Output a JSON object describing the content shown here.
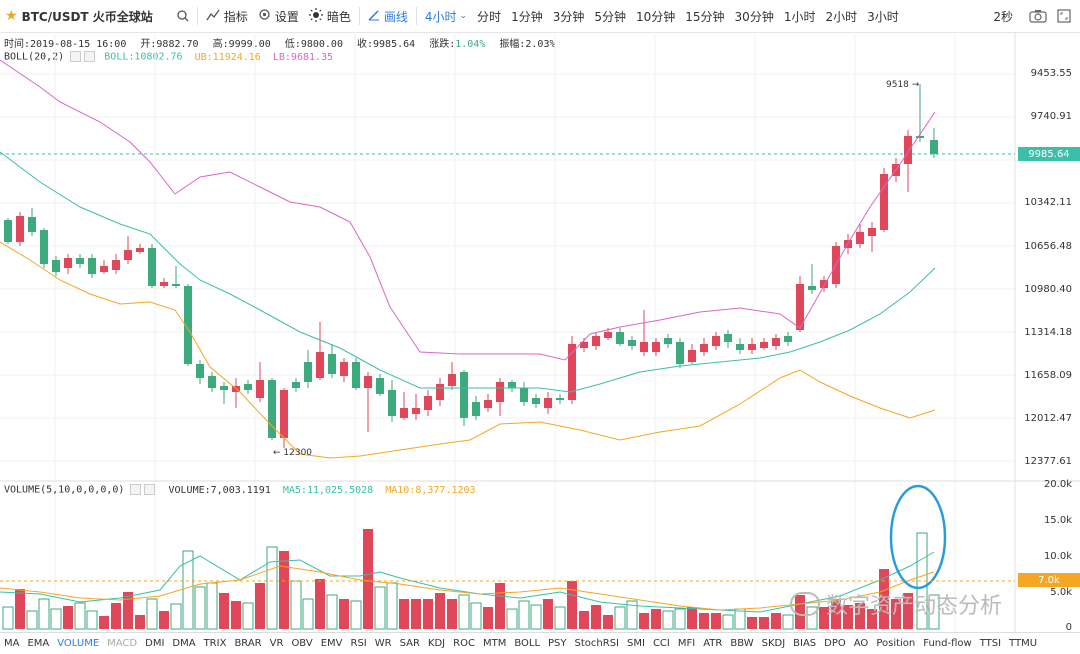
{
  "toolbar": {
    "symbol": "BTC/USDT 火币全球站",
    "indicators": "指标",
    "settings": "设置",
    "dark": "暗色",
    "draw": "画线",
    "interval_selected": "4小时",
    "intervals": [
      "分时",
      "1分钟",
      "3分钟",
      "5分钟",
      "10分钟",
      "15分钟",
      "30分钟",
      "1小时",
      "2小时",
      "3小时"
    ],
    "refresh": "2秒"
  },
  "info": {
    "time": "时间:2019-08-15 16:00",
    "open": "开:9882.70",
    "high": "高:9999.00",
    "low": "低:9800.00",
    "close": "收:9985.64",
    "change_label": "涨跌:",
    "change": "1.04%",
    "amplitude": "振幅:2.03%"
  },
  "boll": {
    "name": "BOLL(20,2)",
    "mid": "BOLL:10802.76",
    "ub": "UB:11924.16",
    "lb": "LB:9681.35"
  },
  "volume_info": {
    "name": "VOLUME(5,10,0,0,0,0)",
    "vol": "VOLUME:7,003.1191",
    "ma5": "MA5:11,025.5028",
    "ma10": "MA10:8,377.1203"
  },
  "y_axis": [
    "9453.55",
    "9740.91",
    "10342.11",
    "10656.48",
    "10980.40",
    "11314.18",
    "11658.09",
    "12012.47",
    "12377.61"
  ],
  "current_price": "9985.64",
  "vol_axis": [
    "20.0k",
    "15.0k",
    "10.0k",
    "5.0k",
    "0"
  ],
  "current_vol": "7.0k",
  "annotations": {
    "high_mark": "9518",
    "low_mark": "12300"
  },
  "indicator_tabs": [
    "MA",
    "EMA",
    "VOLUME",
    "MACD",
    "DMI",
    "DMA",
    "TRIX",
    "BRAR",
    "VR",
    "OBV",
    "EMV",
    "RSI",
    "WR",
    "SAR",
    "KDJ",
    "ROC",
    "MTM",
    "BOLL",
    "PSY",
    "StochRSI",
    "SMI",
    "CCI",
    "MFI",
    "ATR",
    "BBW",
    "SKDJ",
    "BIAS",
    "DPO",
    "AO",
    "Position",
    "Fund-flow",
    "TTSI",
    "TTMU"
  ],
  "watermark": "数字资产动态分析",
  "colors": {
    "up": "#e0475b",
    "down": "#3daa7d",
    "mid": "#3bbfa9",
    "upper": "#d966c8",
    "lower": "#f5a623",
    "accent": "#2b7ce0",
    "circle": "#2b9be0"
  }
}
